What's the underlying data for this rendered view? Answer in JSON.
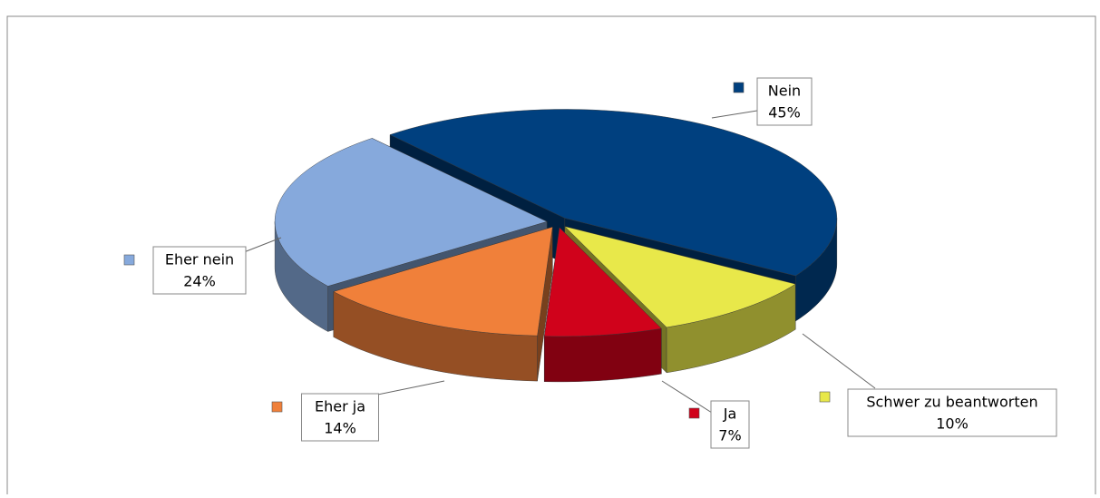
{
  "chart_data": {
    "type": "pie3d",
    "categories": [
      "Nein",
      "Schwer zu beantworten",
      "Ja",
      "Eher ja",
      "Eher nein"
    ],
    "values": [
      45,
      10,
      7,
      14,
      24
    ],
    "value_labels": [
      "45%",
      "10%",
      "7%",
      "14%",
      "24%"
    ],
    "colors": [
      "#00407f",
      "#e8e84a",
      "#d0021b",
      "#f0803a",
      "#86a9dc"
    ]
  }
}
